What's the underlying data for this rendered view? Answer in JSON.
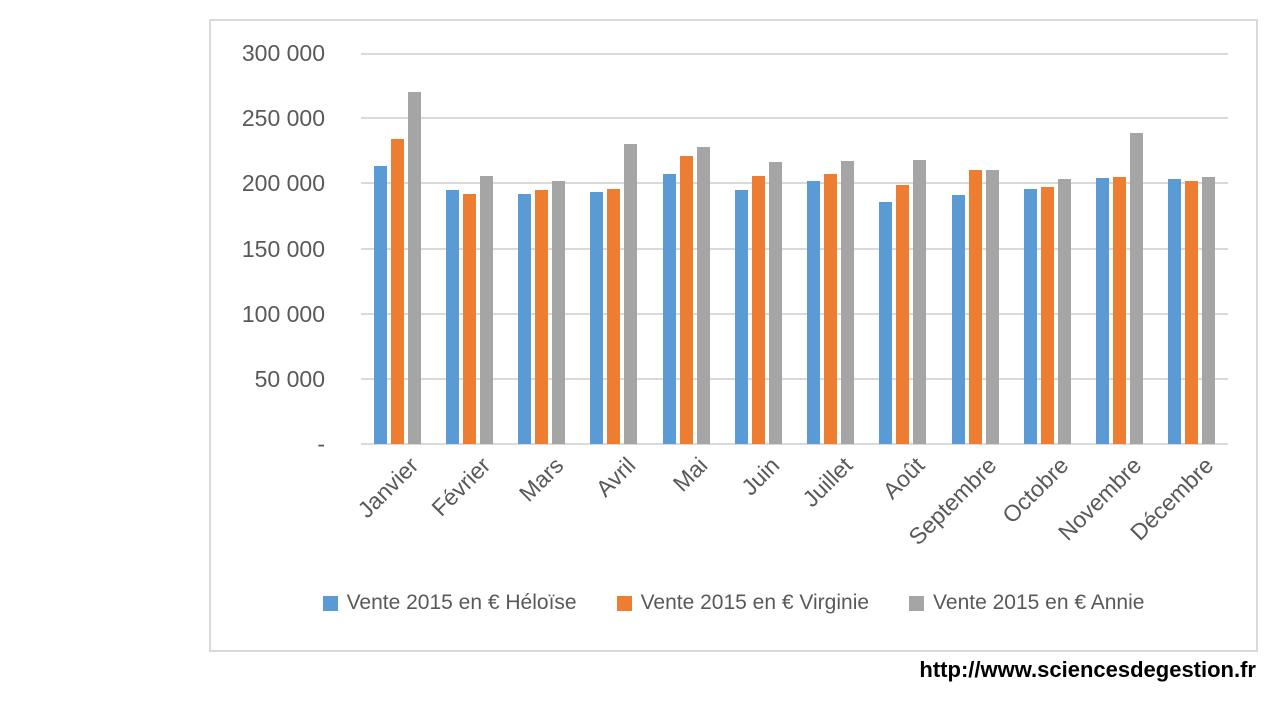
{
  "chart_data": {
    "type": "bar",
    "title": "",
    "xlabel": "",
    "ylabel": "",
    "categories": [
      "Janvier",
      "Février",
      "Mars",
      "Avril",
      "Mai",
      "Juin",
      "Juillet",
      "Août",
      "Septembre",
      "Octobre",
      "Novembre",
      "Décembre"
    ],
    "series": [
      {
        "name": "Vente 2015 en € Héloïse",
        "color": "#5B9BD5",
        "values": [
          213000,
          195000,
          192000,
          193000,
          207000,
          195000,
          202000,
          186000,
          191000,
          196000,
          204000,
          203000
        ]
      },
      {
        "name": "Vente 2015 en € Virginie",
        "color": "#ED7D31",
        "values": [
          234000,
          192000,
          195000,
          196000,
          221000,
          206000,
          207000,
          199000,
          210000,
          197000,
          205000,
          202000
        ]
      },
      {
        "name": "Vente 2015 en € Annie",
        "color": "#A5A5A5",
        "values": [
          270000,
          206000,
          202000,
          230000,
          228000,
          216000,
          217000,
          218000,
          210000,
          203000,
          239000,
          205000
        ]
      }
    ],
    "ylim": [
      0,
      300000
    ],
    "ytick_step": 50000,
    "ytick_labels": [
      "-",
      "50 000",
      "100 000",
      "150 000",
      "200 000",
      "250 000",
      "300 000"
    ],
    "grid": true,
    "legend_position": "bottom"
  },
  "footer": {
    "url": "http://www.sciencesdegestion.fr"
  },
  "colors": {
    "grid": "#D9D9D9",
    "frame_border": "#D9D9D9",
    "axis_text": "#595959",
    "legend_text": "#595959",
    "url_text": "#000000",
    "background": "#FFFFFF"
  }
}
